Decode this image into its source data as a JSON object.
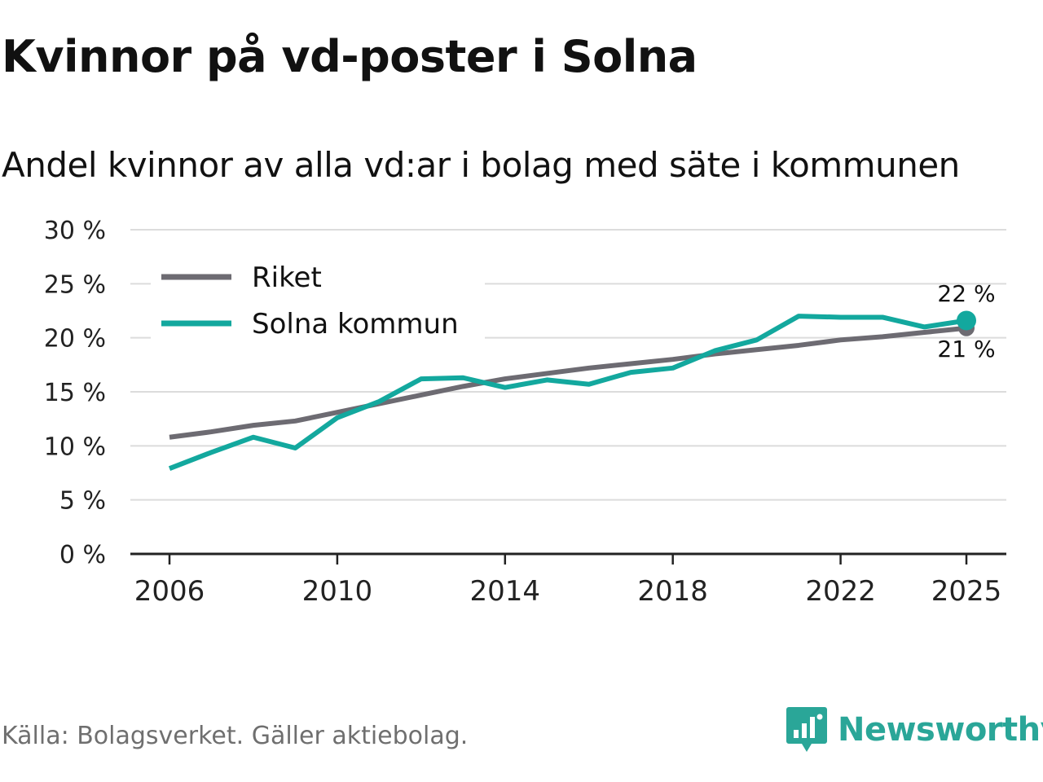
{
  "title": "Kvinnor på vd-poster i Solna",
  "subtitle": "Andel kvinnor av alla vd:ar i bolag med säte i kommunen",
  "source": "Källa: Bolagsverket. Gäller aktiebolag.",
  "brand": "Newsworthy",
  "colors": {
    "riket": "#6d6b72",
    "solna": "#13a89e",
    "grid": "#dcdcdc",
    "axis": "#222222"
  },
  "chart_data": {
    "type": "line",
    "title": "Kvinnor på vd-poster i Solna",
    "subtitle": "Andel kvinnor av alla vd:ar i bolag med säte i kommunen",
    "xlabel": "",
    "ylabel": "",
    "x": [
      2006,
      2007,
      2008,
      2009,
      2010,
      2011,
      2012,
      2013,
      2014,
      2015,
      2016,
      2017,
      2018,
      2019,
      2020,
      2021,
      2022,
      2023,
      2024,
      2025
    ],
    "xticks": [
      2006,
      2010,
      2014,
      2018,
      2022,
      2025
    ],
    "xtick_labels": [
      "2006",
      "2010",
      "2014",
      "2018",
      "2022",
      "2025"
    ],
    "xlim": [
      2005,
      2026
    ],
    "ylim": [
      0,
      30
    ],
    "yticks": [
      0,
      5,
      10,
      15,
      20,
      25,
      30
    ],
    "ytick_labels": [
      "0 %",
      "5 %",
      "10 %",
      "15 %",
      "20 %",
      "25 %",
      "30 %"
    ],
    "grid": true,
    "legend_position": "top-left",
    "series": [
      {
        "name": "Riket",
        "color": "#6d6b72",
        "values": [
          10.8,
          11.3,
          11.9,
          12.3,
          13.1,
          13.9,
          14.7,
          15.5,
          16.2,
          16.7,
          17.2,
          17.6,
          18.0,
          18.5,
          18.9,
          19.3,
          19.8,
          20.1,
          20.5,
          20.9
        ],
        "end_label": "21 %"
      },
      {
        "name": "Solna kommun",
        "color": "#13a89e",
        "values": [
          7.9,
          9.4,
          10.8,
          9.8,
          12.6,
          14.1,
          16.2,
          16.3,
          15.4,
          16.1,
          15.7,
          16.8,
          17.2,
          18.8,
          19.8,
          22.0,
          21.9,
          21.9,
          21.0,
          21.6
        ],
        "end_label": "22 %"
      }
    ]
  }
}
